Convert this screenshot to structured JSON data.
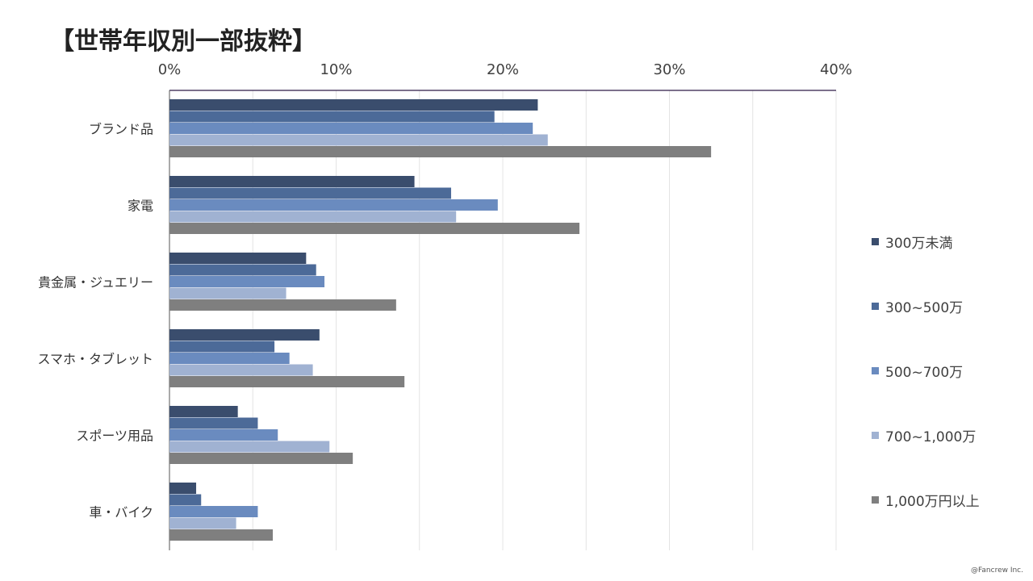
{
  "title": "【世帯年収別一部抜粋】",
  "copyright": "@Fancrew Inc.",
  "chart_data": {
    "type": "bar",
    "orientation": "horizontal",
    "categories": [
      "ブランド品",
      "家電",
      "貴金属・ジュエリー",
      "スマホ・タブレット",
      "スポーツ用品",
      "車・バイク"
    ],
    "x_ticks": [
      "0%",
      "10%",
      "20%",
      "30%",
      "40%"
    ],
    "xlim": [
      0,
      40
    ],
    "x_axis_position": "top",
    "grid": true,
    "legend_position": "right",
    "series": [
      {
        "name": "300万未満",
        "color": "#3a4d6d",
        "values": [
          22.1,
          14.7,
          8.2,
          9.0,
          4.1,
          1.6
        ]
      },
      {
        "name": "300~500万",
        "color": "#4c6a98",
        "values": [
          19.5,
          16.9,
          8.8,
          6.3,
          5.3,
          1.9
        ]
      },
      {
        "name": "500~700万",
        "color": "#6a8bbf",
        "values": [
          21.8,
          19.7,
          9.3,
          7.2,
          6.5,
          5.3
        ]
      },
      {
        "name": "700~1,000万",
        "color": "#a0b2d2",
        "values": [
          22.7,
          17.2,
          7.0,
          8.6,
          9.6,
          4.0
        ]
      },
      {
        "name": "1,000万円以上",
        "color": "#7f7f7f",
        "values": [
          32.5,
          24.6,
          13.6,
          14.1,
          11.0,
          6.2
        ]
      }
    ]
  }
}
